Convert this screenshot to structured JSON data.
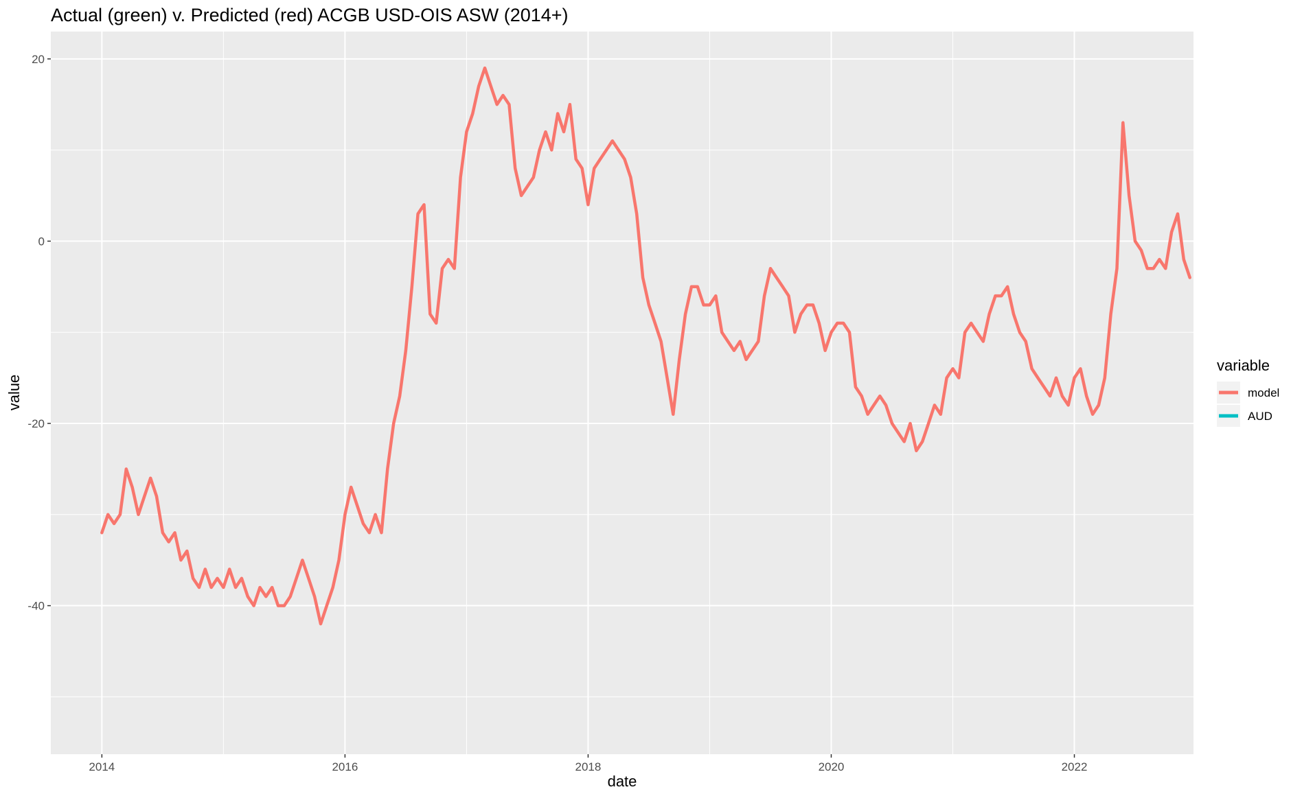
{
  "chart_data": {
    "type": "line",
    "title": "Actual (green) v. Predicted (red) ACGB USD-OIS ASW (2014+)",
    "xlabel": "date",
    "ylabel": "value",
    "xlim": [
      2013.58,
      2022.98
    ],
    "ylim": [
      -56.3,
      23.0
    ],
    "x_ticks": [
      2014,
      2016,
      2018,
      2020,
      2022
    ],
    "x_tick_labels": [
      "2014",
      "2016",
      "2018",
      "2020",
      "2022"
    ],
    "y_ticks": [
      20,
      0,
      -20,
      -40
    ],
    "y_tick_labels": [
      "20",
      "0",
      "-20",
      "-40"
    ],
    "grid": true,
    "legend": {
      "title": "variable",
      "position": "right"
    },
    "series": [
      {
        "name": "model",
        "color": "#F8766D",
        "points": [
          [
            2014.0,
            -32
          ],
          [
            2014.05,
            -30
          ],
          [
            2014.1,
            -31
          ],
          [
            2014.15,
            -30
          ],
          [
            2014.2,
            -25
          ],
          [
            2014.25,
            -27
          ],
          [
            2014.3,
            -30
          ],
          [
            2014.35,
            -28
          ],
          [
            2014.4,
            -26
          ],
          [
            2014.45,
            -28
          ],
          [
            2014.5,
            -32
          ],
          [
            2014.55,
            -33
          ],
          [
            2014.6,
            -32
          ],
          [
            2014.65,
            -35
          ],
          [
            2014.7,
            -34
          ],
          [
            2014.75,
            -37
          ],
          [
            2014.8,
            -38
          ],
          [
            2014.85,
            -36
          ],
          [
            2014.9,
            -38
          ],
          [
            2014.95,
            -37
          ],
          [
            2015.0,
            -38
          ],
          [
            2015.05,
            -36
          ],
          [
            2015.1,
            -38
          ],
          [
            2015.15,
            -37
          ],
          [
            2015.2,
            -39
          ],
          [
            2015.25,
            -40
          ],
          [
            2015.3,
            -38
          ],
          [
            2015.35,
            -39
          ],
          [
            2015.4,
            -38
          ],
          [
            2015.45,
            -40
          ],
          [
            2015.5,
            -40
          ],
          [
            2015.55,
            -39
          ],
          [
            2015.6,
            -37
          ],
          [
            2015.65,
            -35
          ],
          [
            2015.7,
            -37
          ],
          [
            2015.75,
            -39
          ],
          [
            2015.8,
            -42
          ],
          [
            2015.85,
            -40
          ],
          [
            2015.9,
            -38
          ],
          [
            2015.95,
            -35
          ],
          [
            2016.0,
            -30
          ],
          [
            2016.05,
            -27
          ],
          [
            2016.1,
            -29
          ],
          [
            2016.15,
            -31
          ],
          [
            2016.2,
            -32
          ],
          [
            2016.25,
            -30
          ],
          [
            2016.3,
            -32
          ],
          [
            2016.35,
            -25
          ],
          [
            2016.4,
            -20
          ],
          [
            2016.45,
            -17
          ],
          [
            2016.5,
            -12
          ],
          [
            2016.55,
            -5
          ],
          [
            2016.6,
            3
          ],
          [
            2016.65,
            4
          ],
          [
            2016.7,
            -8
          ],
          [
            2016.75,
            -9
          ],
          [
            2016.8,
            -3
          ],
          [
            2016.85,
            -2
          ],
          [
            2016.9,
            -3
          ],
          [
            2016.95,
            7
          ],
          [
            2017.0,
            12
          ],
          [
            2017.05,
            14
          ],
          [
            2017.1,
            17
          ],
          [
            2017.15,
            19
          ],
          [
            2017.2,
            17
          ],
          [
            2017.25,
            15
          ],
          [
            2017.3,
            16
          ],
          [
            2017.35,
            15
          ],
          [
            2017.4,
            8
          ],
          [
            2017.45,
            5
          ],
          [
            2017.5,
            6
          ],
          [
            2017.55,
            7
          ],
          [
            2017.6,
            10
          ],
          [
            2017.65,
            12
          ],
          [
            2017.7,
            10
          ],
          [
            2017.75,
            14
          ],
          [
            2017.8,
            12
          ],
          [
            2017.85,
            15
          ],
          [
            2017.9,
            9
          ],
          [
            2017.95,
            8
          ],
          [
            2018.0,
            4
          ],
          [
            2018.05,
            8
          ],
          [
            2018.1,
            9
          ],
          [
            2018.15,
            10
          ],
          [
            2018.2,
            11
          ],
          [
            2018.25,
            10
          ],
          [
            2018.3,
            9
          ],
          [
            2018.35,
            7
          ],
          [
            2018.4,
            3
          ],
          [
            2018.45,
            -4
          ],
          [
            2018.5,
            -7
          ],
          [
            2018.55,
            -9
          ],
          [
            2018.6,
            -11
          ],
          [
            2018.65,
            -15
          ],
          [
            2018.7,
            -19
          ],
          [
            2018.75,
            -13
          ],
          [
            2018.8,
            -8
          ],
          [
            2018.85,
            -5
          ],
          [
            2018.9,
            -5
          ],
          [
            2018.95,
            -7
          ],
          [
            2019.0,
            -7
          ],
          [
            2019.05,
            -6
          ],
          [
            2019.1,
            -10
          ],
          [
            2019.15,
            -11
          ],
          [
            2019.2,
            -12
          ],
          [
            2019.25,
            -11
          ],
          [
            2019.3,
            -13
          ],
          [
            2019.35,
            -12
          ],
          [
            2019.4,
            -11
          ],
          [
            2019.45,
            -6
          ],
          [
            2019.5,
            -3
          ],
          [
            2019.55,
            -4
          ],
          [
            2019.6,
            -5
          ],
          [
            2019.65,
            -6
          ],
          [
            2019.7,
            -10
          ],
          [
            2019.75,
            -8
          ],
          [
            2019.8,
            -7
          ],
          [
            2019.85,
            -7
          ],
          [
            2019.9,
            -9
          ],
          [
            2019.95,
            -12
          ],
          [
            2020.0,
            -10
          ],
          [
            2020.05,
            -9
          ],
          [
            2020.1,
            -9
          ],
          [
            2020.15,
            -10
          ],
          [
            2020.2,
            -16
          ],
          [
            2020.25,
            -17
          ],
          [
            2020.3,
            -19
          ],
          [
            2020.35,
            -18
          ],
          [
            2020.4,
            -17
          ],
          [
            2020.45,
            -18
          ],
          [
            2020.5,
            -20
          ],
          [
            2020.55,
            -21
          ],
          [
            2020.6,
            -22
          ],
          [
            2020.65,
            -20
          ],
          [
            2020.7,
            -23
          ],
          [
            2020.75,
            -22
          ],
          [
            2020.8,
            -20
          ],
          [
            2020.85,
            -18
          ],
          [
            2020.9,
            -19
          ],
          [
            2020.95,
            -15
          ],
          [
            2021.0,
            -14
          ],
          [
            2021.05,
            -15
          ],
          [
            2021.1,
            -10
          ],
          [
            2021.15,
            -9
          ],
          [
            2021.2,
            -10
          ],
          [
            2021.25,
            -11
          ],
          [
            2021.3,
            -8
          ],
          [
            2021.35,
            -6
          ],
          [
            2021.4,
            -6
          ],
          [
            2021.45,
            -5
          ],
          [
            2021.5,
            -8
          ],
          [
            2021.55,
            -10
          ],
          [
            2021.6,
            -11
          ],
          [
            2021.65,
            -14
          ],
          [
            2021.7,
            -15
          ],
          [
            2021.75,
            -16
          ],
          [
            2021.8,
            -17
          ],
          [
            2021.85,
            -15
          ],
          [
            2021.9,
            -17
          ],
          [
            2021.95,
            -18
          ],
          [
            2022.0,
            -15
          ],
          [
            2022.05,
            -14
          ],
          [
            2022.1,
            -17
          ],
          [
            2022.15,
            -19
          ],
          [
            2022.2,
            -18
          ],
          [
            2022.25,
            -15
          ],
          [
            2022.3,
            -8
          ],
          [
            2022.35,
            -3
          ],
          [
            2022.4,
            13
          ],
          [
            2022.45,
            5
          ],
          [
            2022.5,
            0
          ],
          [
            2022.55,
            -1
          ],
          [
            2022.6,
            -3
          ],
          [
            2022.65,
            -3
          ],
          [
            2022.7,
            -2
          ],
          [
            2022.75,
            -3
          ],
          [
            2022.8,
            1
          ],
          [
            2022.85,
            3
          ],
          [
            2022.9,
            -2
          ],
          [
            2022.95,
            -4
          ]
        ]
      },
      {
        "name": "AUD",
        "color": "#00BFC4",
        "points": []
      }
    ]
  }
}
